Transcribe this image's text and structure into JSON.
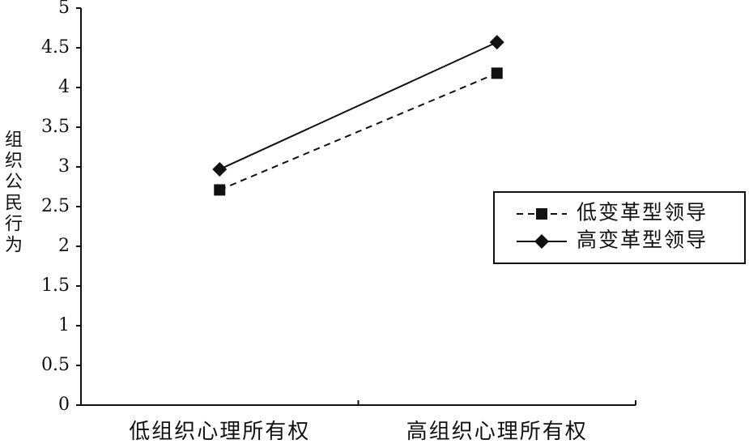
{
  "chart_data": {
    "type": "line",
    "y_label": "组织公民行为",
    "categories": [
      "低组织心理所有权",
      "高组织心理所有权"
    ],
    "series": [
      {
        "name": "低变革型领导",
        "color": "#111111",
        "linestyle": "dashed",
        "marker": "square",
        "values": [
          2.71,
          4.18
        ]
      },
      {
        "name": "高变革型领导",
        "color": "#111111",
        "linestyle": "solid",
        "marker": "diamond",
        "values": [
          2.97,
          4.57
        ]
      }
    ],
    "ylim": [
      0,
      5
    ],
    "yticks": [
      0,
      0.5,
      1,
      1.5,
      2,
      2.5,
      3,
      3.5,
      4,
      4.5,
      5
    ],
    "grid": false,
    "legend": "right"
  }
}
